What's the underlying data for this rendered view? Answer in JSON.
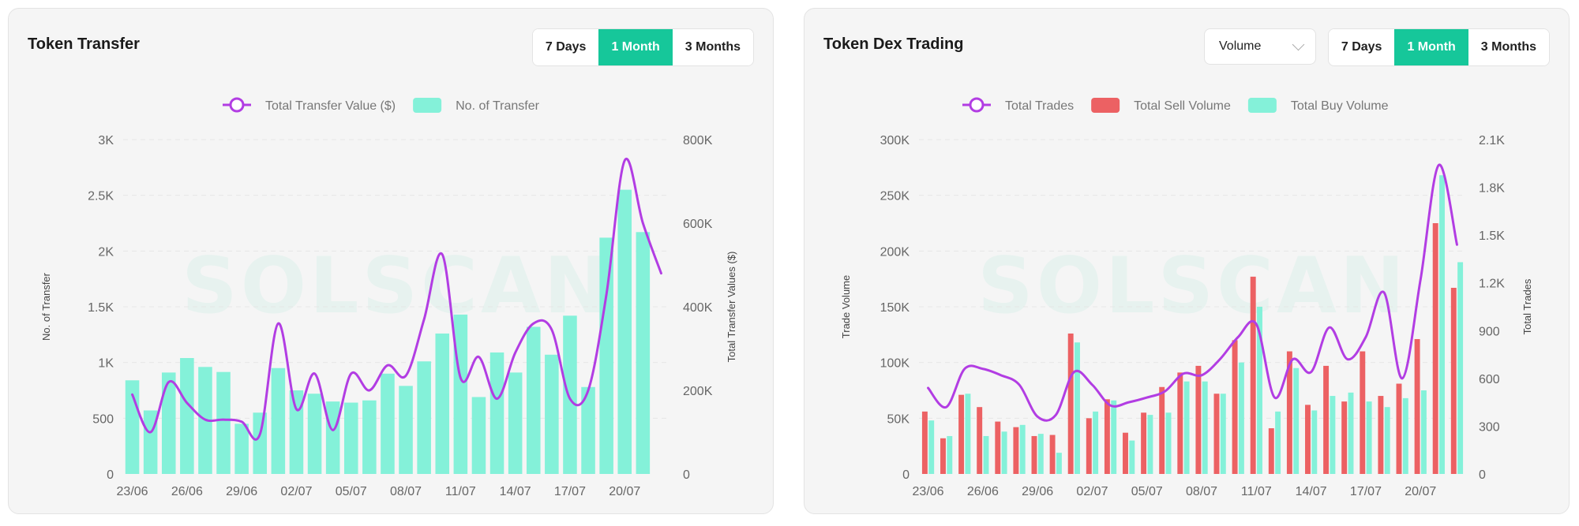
{
  "colors": {
    "accent": "#16c79a",
    "bar_transfer": "#84f1d9",
    "bar_sell": "#ec6163",
    "bar_buy": "#84f1d9",
    "line": "#b23de3"
  },
  "watermark": "SOLSCAN",
  "transfer": {
    "title": "Token Transfer",
    "ranges": [
      "7 Days",
      "1 Month",
      "3 Months"
    ],
    "active_range": "1 Month"
  },
  "dex": {
    "title": "Token Dex Trading",
    "select_value": "Volume",
    "ranges": [
      "7 Days",
      "1 Month",
      "3 Months"
    ],
    "active_range": "1 Month"
  },
  "chart_data": [
    {
      "type": "bar",
      "title": "Token Transfer",
      "categories": [
        "23/06",
        "24/06",
        "25/06",
        "26/06",
        "27/06",
        "28/06",
        "29/06",
        "30/06",
        "01/07",
        "02/07",
        "03/07",
        "04/07",
        "05/07",
        "06/07",
        "07/07",
        "08/07",
        "09/07",
        "10/07",
        "11/07",
        "12/07",
        "13/07",
        "14/07",
        "15/07",
        "16/07",
        "17/07",
        "18/07",
        "19/07",
        "20/07",
        "21/07",
        "22/07"
      ],
      "x_tick_labels": [
        "23/06",
        "26/06",
        "29/06",
        "02/07",
        "05/07",
        "08/07",
        "11/07",
        "14/07",
        "17/07",
        "20/07"
      ],
      "series": [
        {
          "name": "No. of Transfer",
          "type": "bar",
          "axis": "left",
          "values": [
            840,
            570,
            910,
            1040,
            960,
            915,
            450,
            550,
            950,
            750,
            720,
            650,
            640,
            660,
            900,
            790,
            1010,
            1260,
            1430,
            690,
            1090,
            910,
            1320,
            1070,
            1420,
            780,
            2120,
            2550,
            2170,
            null
          ]
        },
        {
          "name": "Total Transfer Value ($)",
          "type": "line",
          "axis": "right",
          "values": [
            190000,
            100000,
            220000,
            170000,
            130000,
            130000,
            125000,
            95000,
            360000,
            155000,
            240000,
            105000,
            240000,
            200000,
            260000,
            235000,
            370000,
            525000,
            230000,
            280000,
            180000,
            290000,
            360000,
            345000,
            180000,
            200000,
            430000,
            750000,
            600000,
            480000
          ]
        }
      ],
      "ylabel": "No. of Transfer",
      "ylim": [
        0,
        3000
      ],
      "yticks": [
        "0",
        "500",
        "1K",
        "1.5K",
        "2K",
        "2.5K",
        "3K"
      ],
      "y2label": "Total Transfer Values ($)",
      "y2lim": [
        0,
        800000
      ],
      "y2ticks": [
        "0",
        "200K",
        "400K",
        "600K",
        "800K"
      ],
      "grid": true
    },
    {
      "type": "bar",
      "title": "Token Dex Trading",
      "categories": [
        "23/06",
        "24/06",
        "25/06",
        "26/06",
        "27/06",
        "28/06",
        "29/06",
        "30/06",
        "01/07",
        "02/07",
        "03/07",
        "04/07",
        "05/07",
        "06/07",
        "07/07",
        "08/07",
        "09/07",
        "10/07",
        "11/07",
        "12/07",
        "13/07",
        "14/07",
        "15/07",
        "16/07",
        "17/07",
        "18/07",
        "19/07",
        "20/07",
        "21/07",
        "22/07"
      ],
      "x_tick_labels": [
        "23/06",
        "26/06",
        "29/06",
        "02/07",
        "05/07",
        "08/07",
        "11/07",
        "14/07",
        "17/07",
        "20/07"
      ],
      "series": [
        {
          "name": "Total Sell Volume",
          "type": "bar",
          "axis": "left",
          "values": [
            56000,
            32000,
            71000,
            60000,
            47000,
            42000,
            34000,
            35000,
            126000,
            50000,
            67000,
            37000,
            55000,
            78000,
            91000,
            97000,
            72000,
            120000,
            177000,
            41000,
            110000,
            62000,
            97000,
            65000,
            110000,
            70000,
            81000,
            121000,
            225000,
            167000
          ]
        },
        {
          "name": "Total Buy Volume",
          "type": "bar",
          "axis": "left",
          "values": [
            48000,
            34000,
            72000,
            34000,
            38000,
            44000,
            36000,
            19000,
            118000,
            56000,
            66000,
            30000,
            53000,
            55000,
            83000,
            83000,
            72000,
            100000,
            150000,
            56000,
            95000,
            57000,
            70000,
            73000,
            65000,
            60000,
            68000,
            75000,
            268000,
            190000
          ]
        },
        {
          "name": "Total Trades",
          "type": "line",
          "axis": "right",
          "values": [
            540,
            420,
            660,
            660,
            620,
            560,
            360,
            370,
            640,
            560,
            430,
            450,
            480,
            520,
            630,
            620,
            720,
            860,
            940,
            480,
            720,
            640,
            920,
            720,
            860,
            1140,
            600,
            1220,
            1940,
            1440
          ]
        }
      ],
      "ylabel": "Trade Volume",
      "ylim": [
        0,
        300000
      ],
      "yticks": [
        "0",
        "50K",
        "100K",
        "150K",
        "200K",
        "250K",
        "300K"
      ],
      "y2label": "Total Trades",
      "y2lim": [
        0,
        2100
      ],
      "y2ticks": [
        "0",
        "300",
        "600",
        "900",
        "1.2K",
        "1.5K",
        "1.8K",
        "2.1K"
      ],
      "grid": true
    }
  ]
}
